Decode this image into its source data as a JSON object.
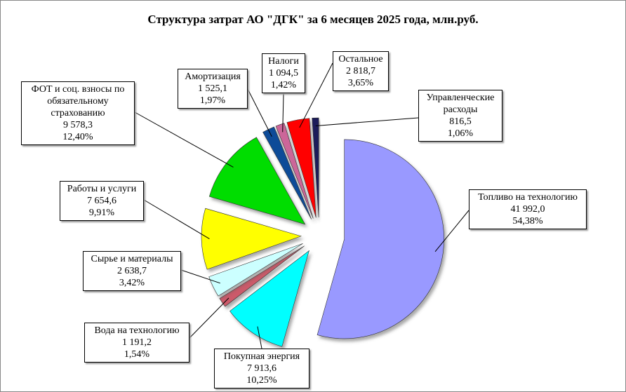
{
  "chart_data": {
    "type": "pie",
    "title": "Структура  затрат  АО \"ДГК\" за 6 месяцев 2025 года,  млн.руб.",
    "categories": [
      "Топливо на технологию",
      "Покупная  энергия",
      "Вода  на технологию",
      "Сырье и материалы",
      "Работы и услуги",
      "ФОТ и соц. взносы по обязательному страхованию",
      "Амортизация",
      "Налоги",
      "Остальное",
      "Управленческие расходы"
    ],
    "values": [
      41992.0,
      7913.6,
      1191.2,
      2638.7,
      7654.6,
      9578.3,
      1525.1,
      1094.5,
      2818.7,
      816.5
    ],
    "value_labels": [
      "41 992,0",
      "7 913,6",
      "1 191,2",
      "2 638,7",
      "7 654,6",
      "9 578,3",
      "1 525,1",
      "1 094,5",
      "2 818,7",
      "816,5"
    ],
    "percents": [
      54.38,
      10.25,
      1.54,
      3.42,
      9.91,
      12.4,
      1.97,
      1.42,
      3.65,
      1.06
    ],
    "percent_labels": [
      "54,38%",
      "10,25%",
      "1,54%",
      "3,42%",
      "9,91%",
      "12,40%",
      "1,97%",
      "1,42%",
      "3,65%",
      "1,06%"
    ],
    "colors": [
      "#9999ff",
      "#00ffff",
      "#cc5a6a",
      "#ccffff",
      "#ffff00",
      "#00dd00",
      "#0a4c98",
      "#cc6699",
      "#ff0000",
      "#1c1c5a"
    ]
  }
}
